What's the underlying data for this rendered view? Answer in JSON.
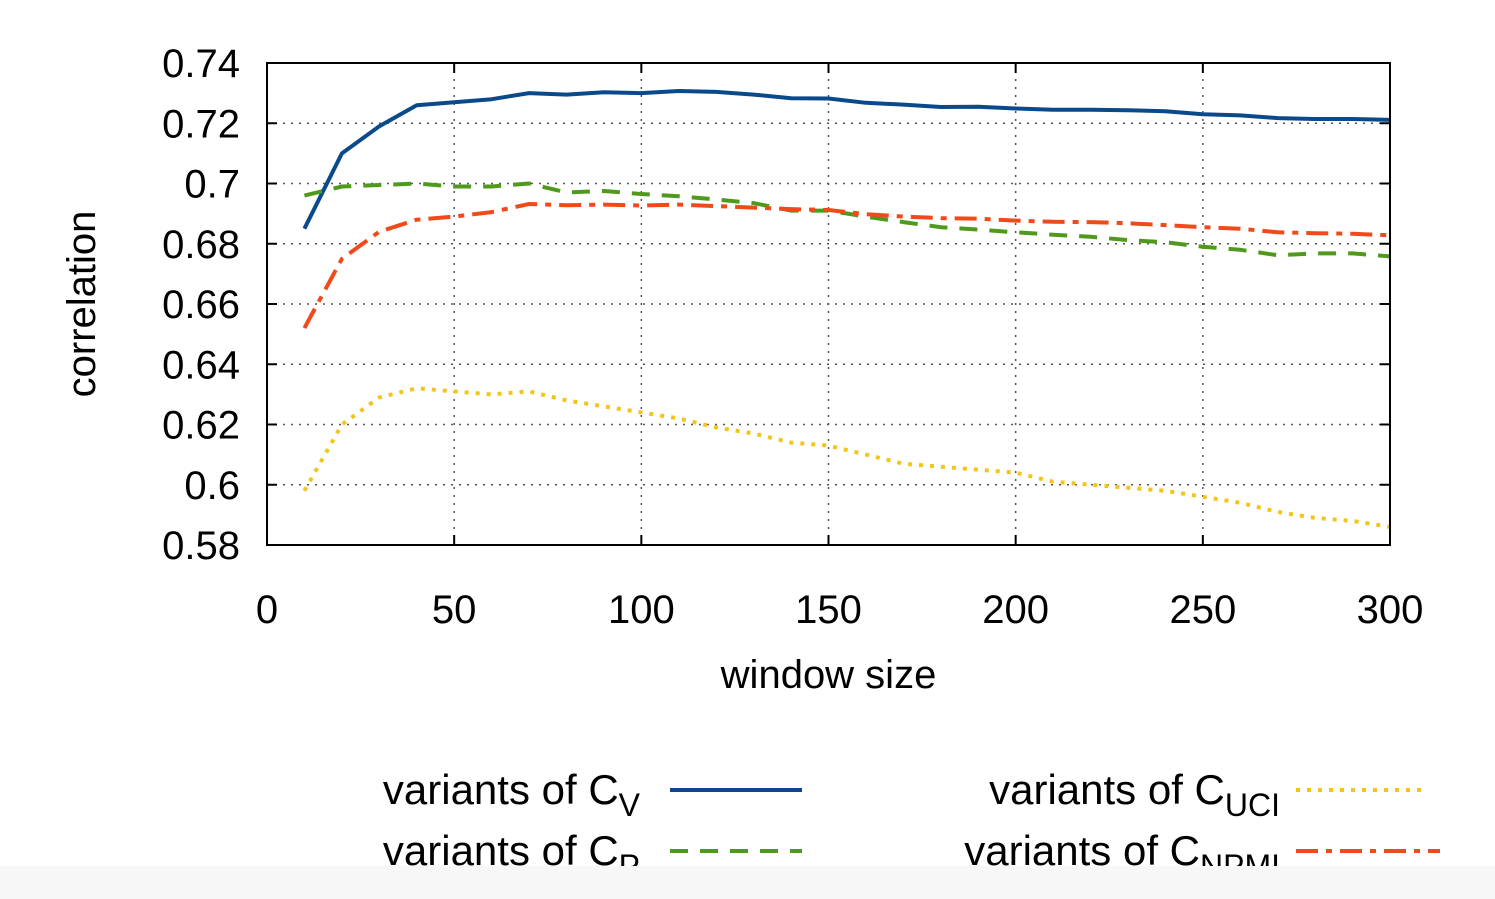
{
  "chart_data": {
    "type": "line",
    "xlabel": "window size",
    "ylabel": "correlation",
    "xlim": [
      0,
      300
    ],
    "ylim": [
      0.58,
      0.74
    ],
    "xticks": [
      "0",
      "50",
      "100",
      "150",
      "200",
      "250",
      "300"
    ],
    "yticks": [
      "0.58",
      "0.6",
      "0.62",
      "0.64",
      "0.66",
      "0.68",
      "0.7",
      "0.72",
      "0.74"
    ],
    "grid": true,
    "legend_position": "bottom",
    "legend_prefix": "variants of C",
    "x": [
      10,
      20,
      30,
      40,
      50,
      60,
      70,
      80,
      90,
      100,
      110,
      120,
      130,
      140,
      150,
      160,
      170,
      180,
      190,
      200,
      210,
      220,
      230,
      240,
      250,
      260,
      270,
      280,
      290,
      300
    ],
    "series": [
      {
        "name": "variants of CV",
        "subscript": "V",
        "color": "#0a4a8a",
        "dash": "solid",
        "values": [
          0.685,
          0.71,
          0.719,
          0.726,
          0.727,
          0.728,
          0.73,
          0.7295,
          0.7303,
          0.73,
          0.7307,
          0.7304,
          0.7295,
          0.7283,
          0.7282,
          0.7268,
          0.7262,
          0.7254,
          0.7255,
          0.7249,
          0.7245,
          0.7245,
          0.7243,
          0.724,
          0.723,
          0.7226,
          0.7217,
          0.7214,
          0.7214,
          0.7211
        ]
      },
      {
        "name": "variants of CP",
        "subscript": "P",
        "color": "#4f9a1c",
        "dash": "dashed",
        "values": [
          0.696,
          0.699,
          0.6995,
          0.7,
          0.699,
          0.699,
          0.7,
          0.697,
          0.6975,
          0.6965,
          0.6958,
          0.6947,
          0.6935,
          0.691,
          0.691,
          0.689,
          0.6872,
          0.6855,
          0.6847,
          0.6838,
          0.683,
          0.6823,
          0.6812,
          0.6805,
          0.679,
          0.678,
          0.6762,
          0.6768,
          0.6768,
          0.6758
        ]
      },
      {
        "name": "variants of CUCI",
        "subscript": "UCI",
        "color": "#f3c51a",
        "dash": "dotted",
        "values": [
          0.598,
          0.62,
          0.629,
          0.632,
          0.631,
          0.63,
          0.631,
          0.628,
          0.626,
          0.624,
          0.622,
          0.619,
          0.617,
          0.614,
          0.613,
          0.61,
          0.607,
          0.606,
          0.605,
          0.604,
          0.601,
          0.6,
          0.599,
          0.598,
          0.596,
          0.594,
          0.591,
          0.589,
          0.588,
          0.586
        ]
      },
      {
        "name": "variants of CNPMI",
        "subscript": "NPMI",
        "color": "#f04a1a",
        "dash": "dashdot",
        "values": [
          0.652,
          0.675,
          0.684,
          0.688,
          0.689,
          0.6905,
          0.6932,
          0.6928,
          0.693,
          0.6927,
          0.693,
          0.6925,
          0.692,
          0.6915,
          0.6912,
          0.6898,
          0.689,
          0.6885,
          0.6883,
          0.6877,
          0.6873,
          0.6872,
          0.6868,
          0.6862,
          0.6855,
          0.685,
          0.6838,
          0.6835,
          0.6833,
          0.6828
        ]
      }
    ]
  }
}
